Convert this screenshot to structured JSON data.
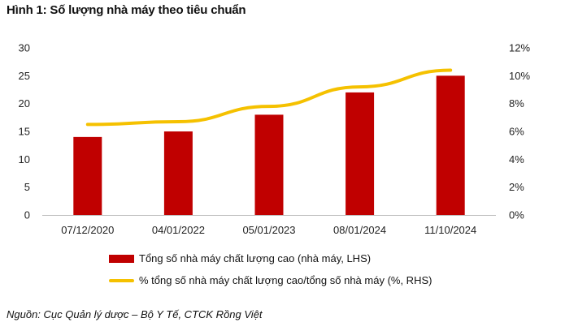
{
  "title": "Hình 1: Số lượng nhà máy theo tiêu chuẩn",
  "source": "Nguồn: Cục Quản lý dược – Bộ Y Tế, CTCK Rồng Việt",
  "colors": {
    "bar": "#c00000",
    "line": "#f5c100",
    "axis": "#bfbfbf"
  },
  "chart_data": {
    "type": "bar",
    "categories": [
      "07/12/2020",
      "04/01/2022",
      "05/01/2023",
      "08/01/2024",
      "11/10/2024"
    ],
    "series": [
      {
        "name": "Tổng số nhà máy chất lượng cao (nhà máy, LHS)",
        "type": "bar",
        "axis": "left",
        "values": [
          14,
          15,
          18,
          22,
          25
        ]
      },
      {
        "name": "% tổng số nhà máy chất lượng cao/tổng số nhà máy (%, RHS)",
        "type": "line",
        "axis": "right",
        "values": [
          6.5,
          6.7,
          7.8,
          9.2,
          10.4
        ]
      }
    ],
    "ylim_left": [
      0,
      30
    ],
    "yticks_left": [
      "0",
      "5",
      "10",
      "15",
      "20",
      "25",
      "30"
    ],
    "ylim_right": [
      0,
      12
    ],
    "yticks_right": [
      "0%",
      "2%",
      "4%",
      "6%",
      "8%",
      "10%",
      "12%"
    ],
    "grid": false,
    "legend_position": "bottom"
  }
}
